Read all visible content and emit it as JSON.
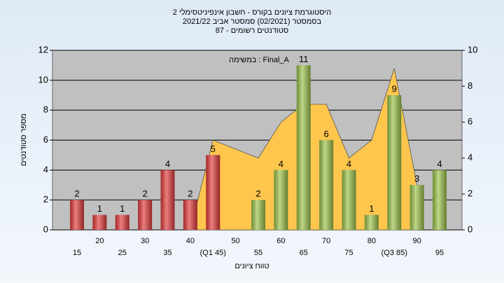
{
  "chart_data": {
    "type": "bar",
    "title": "היסטוגרמת ציונים בקורס - חשבון אינפיניטסימלי 2",
    "subtitle": [
      "בסמסטר  (02/2021)  סמסטר אביב 2021/22",
      "סטודנטים רשומים - 87"
    ],
    "annotation": "במשימה : Final_A",
    "y_label": "מספר סטודנטים",
    "x_label": "טווח ציונים",
    "categories": [
      "15",
      "20",
      "25",
      "30",
      "35",
      "40",
      "(Q1 45)",
      "50",
      "55",
      "60",
      "65",
      "70",
      "75",
      "80",
      "(Q3 85)",
      "90",
      "95"
    ],
    "values": [
      2,
      1,
      1,
      2,
      4,
      2,
      5,
      null,
      2,
      4,
      11,
      6,
      4,
      1,
      9,
      3,
      4
    ],
    "colors": [
      "#e23a3a",
      "#e23a3a",
      "#e23a3a",
      "#e23a3a",
      "#e23a3a",
      "#e23a3a",
      "#e23a3a",
      "#e23a3a",
      "#9cc24a",
      "#9cc24a",
      "#9cc24a",
      "#9cc24a",
      "#9cc24a",
      "#9cc24a",
      "#9cc24a",
      "#9cc24a",
      "#9cc24a"
    ],
    "area": {
      "color": "#ffc64e",
      "axis": "y2",
      "values": [
        null,
        null,
        null,
        null,
        null,
        0,
        5,
        4.5,
        4,
        6,
        7,
        7,
        4,
        5,
        9,
        2.5,
        null
      ]
    },
    "ylim": [
      0,
      12
    ],
    "yticks": [
      0,
      2,
      4,
      6,
      8,
      10,
      12
    ],
    "y2lim": [
      0,
      10
    ],
    "y2ticks": [
      0,
      2,
      4,
      6,
      8,
      10
    ],
    "grid": true
  }
}
